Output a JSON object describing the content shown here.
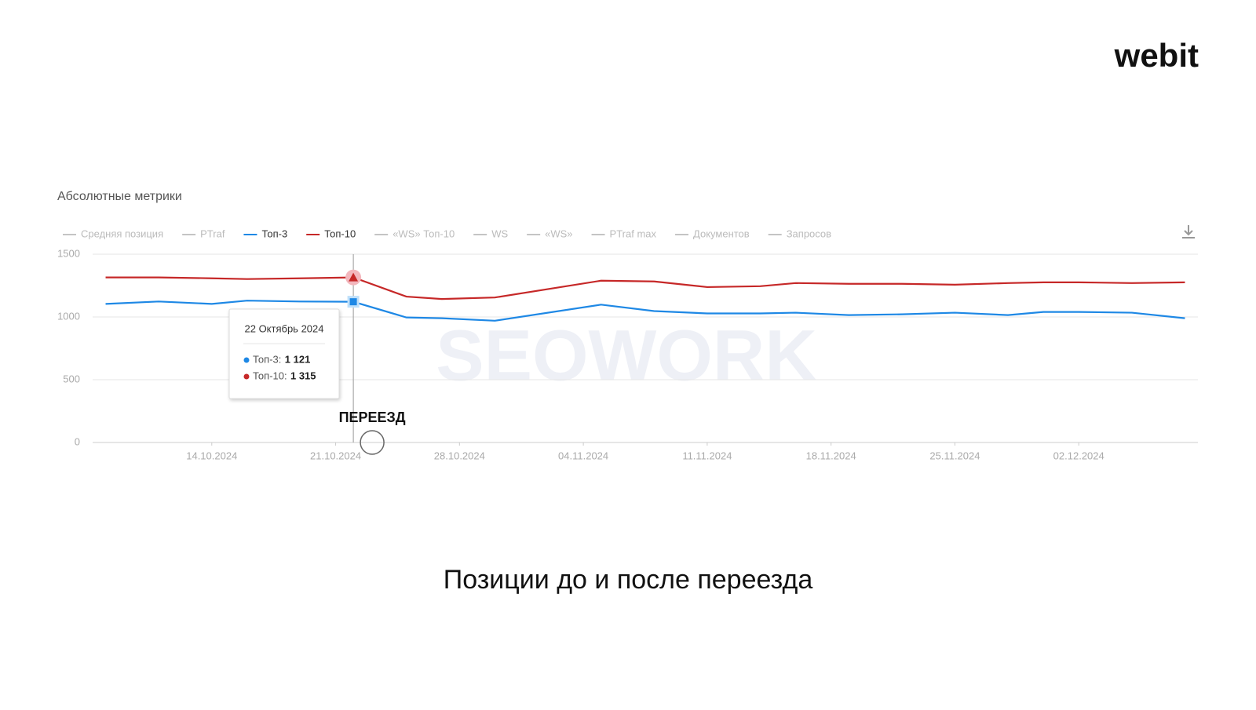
{
  "logo": "webit",
  "caption": "Позиции до и после переезда",
  "chart_data": {
    "type": "line",
    "title": "Абсолютные метрики",
    "watermark": "SEOWORK",
    "annotation": "ПЕРЕЕЗД",
    "inactive_series": [
      "Средняя позиция",
      "PTraf",
      "«WS» Топ-10",
      "WS",
      "«WS»",
      "PTraf max",
      "Документов",
      "Запросов"
    ],
    "inactive_color": "#c4c4c4",
    "x": [
      "08.10.2024",
      "11.10.2024",
      "14.10.2024",
      "16.10.2024",
      "19.10.2024",
      "22.10.2024",
      "25.10.2024",
      "27.10.2024",
      "30.10.2024",
      "05.11.2024",
      "08.11.2024",
      "11.11.2024",
      "14.11.2024",
      "16.11.2024",
      "19.11.2024",
      "22.11.2024",
      "25.11.2024",
      "28.11.2024",
      "30.11.2024",
      "02.12.2024",
      "05.12.2024",
      "08.12.2024"
    ],
    "series": [
      {
        "name": "Топ-3",
        "color": "#1e88e5",
        "values": [
          1104,
          1123,
          1104,
          1130,
          1123,
          1121,
          996,
          990,
          970,
          1098,
          1047,
          1028,
          1028,
          1034,
          1015,
          1021,
          1034,
          1015,
          1040,
          1040,
          1034,
          990
        ]
      },
      {
        "name": "Топ-10",
        "color": "#c62828",
        "values": [
          1315,
          1315,
          1308,
          1302,
          1308,
          1315,
          1162,
          1143,
          1155,
          1289,
          1283,
          1238,
          1245,
          1270,
          1264,
          1264,
          1257,
          1270,
          1276,
          1276,
          1270,
          1276
        ]
      }
    ],
    "xlim": [
      "07.10.2024",
      "09.12.2024"
    ],
    "xticks": [
      "14.10.2024",
      "21.10.2024",
      "28.10.2024",
      "04.11.2024",
      "11.11.2024",
      "18.11.2024",
      "25.11.2024",
      "02.12.2024"
    ],
    "ylim": [
      0,
      1500
    ],
    "yticks": [
      0,
      500,
      1000,
      1500
    ],
    "grid": true,
    "tooltip": {
      "title": "22 Октябрь 2024",
      "index": 5,
      "labels": [
        "1 121",
        "1 315"
      ]
    }
  }
}
